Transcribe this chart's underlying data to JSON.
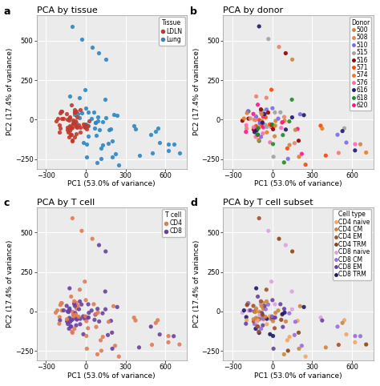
{
  "title_a": "PCA by tissue",
  "title_b": "PCA by donor",
  "title_c": "PCA by T cell",
  "title_d": "PCA by T cell subset",
  "xlabel": "PC1 (53.0% of variance)",
  "ylabel": "PC2 (17.4% of variance)",
  "xlim": [
    -370,
    760
  ],
  "ylim": [
    -310,
    660
  ],
  "xticks": [
    -300,
    0,
    300,
    600
  ],
  "yticks": [
    -250,
    0,
    250,
    500
  ],
  "tissue_colors": {
    "LDLN": "#c1392b",
    "Lung": "#2e86c1"
  },
  "donor_colors": {
    "500": "#cd853f",
    "508": "#e8826a",
    "510": "#7b68ee",
    "515": "#a0a0a0",
    "516": "#8b0000",
    "571": "#ff4500",
    "574": "#e67e22",
    "576": "#ff69b4",
    "616": "#191970",
    "618": "#228b22",
    "620": "#ff1493"
  },
  "tcell_colors": {
    "CD4": "#e07b54",
    "CD8": "#6a3fa0"
  },
  "celltype_colors": {
    "CD4 naive": "#f4a460",
    "CD4 CM": "#cd853f",
    "CD4 EM": "#a0522d",
    "CD4 TRM": "#8b4513",
    "CD8 naive": "#dda0dd",
    "CD8 CM": "#9370db",
    "CD8 EM": "#6a3fa0",
    "CD8 TRM": "#191970"
  },
  "seed": 7,
  "label_fontsize": 6.5,
  "title_fontsize": 8,
  "legend_fontsize": 5.5,
  "tick_fontsize": 6,
  "panel_label_fontsize": 9,
  "bg_color": "#ebebeb",
  "grid_color": "white",
  "dot_size": 14,
  "dot_alpha": 0.9
}
